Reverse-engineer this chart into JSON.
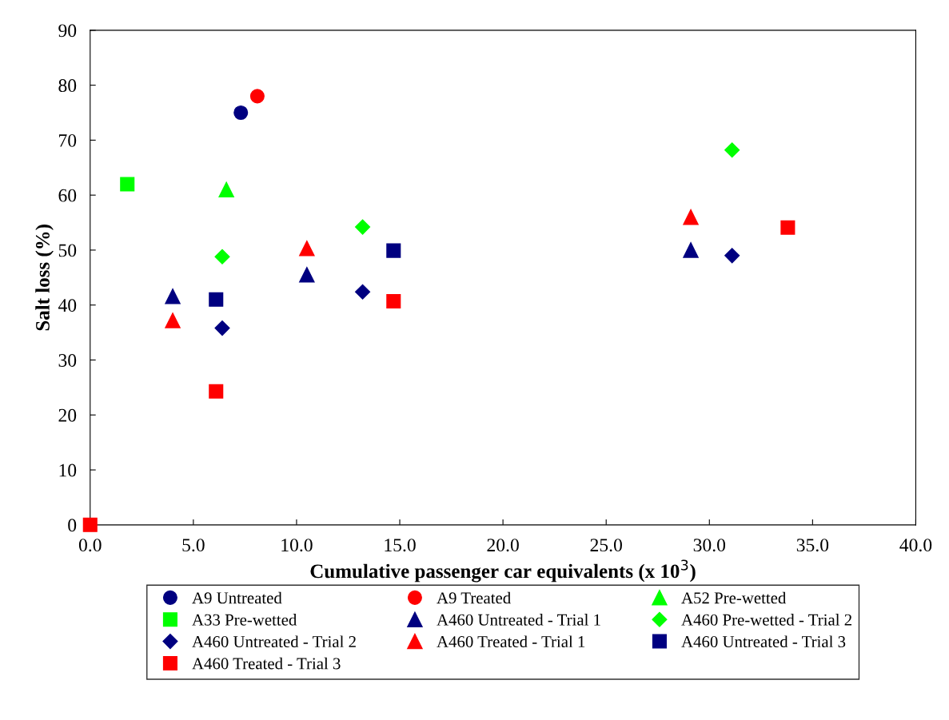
{
  "chart_data": {
    "type": "scatter",
    "xlabel": "Cumulative passenger car equivalents (x 10$^{3}$)",
    "ylabel": "Salt loss (%)",
    "xlim": [
      0,
      40
    ],
    "xticks": [
      {
        "value": 0,
        "label": "0.0"
      },
      {
        "value": 5,
        "label": "5.0"
      },
      {
        "value": 10,
        "label": "10.0"
      },
      {
        "value": 15,
        "label": "15.0"
      },
      {
        "value": 20,
        "label": "20.0"
      },
      {
        "value": 25,
        "label": "25.0"
      },
      {
        "value": 30,
        "label": "30.0"
      },
      {
        "value": 35,
        "label": "35.0"
      },
      {
        "value": 40,
        "label": "40.0"
      }
    ],
    "ylim": [
      0,
      90
    ],
    "yticks": [
      0,
      10,
      20,
      30,
      40,
      50,
      60,
      70,
      80,
      90
    ],
    "grid": false,
    "legend": "bottom",
    "series": [
      {
        "name": "A9 Untreated",
        "color": "#000080",
        "marker": "circle",
        "x": [
          7.3
        ],
        "values": [
          75
        ]
      },
      {
        "name": "A9 Treated",
        "color": "#ff0000",
        "marker": "circle",
        "x": [
          8.1
        ],
        "values": [
          78
        ]
      },
      {
        "name": "A52 Pre-wetted",
        "color": "#00ff00",
        "marker": "triangle",
        "x": [
          6.6
        ],
        "values": [
          61
        ]
      },
      {
        "name": "A33 Pre-wetted",
        "color": "#00ff00",
        "marker": "square",
        "x": [
          1.8
        ],
        "values": [
          62
        ]
      },
      {
        "name": "A460 Untreated - Trial 1",
        "color": "#000080",
        "marker": "triangle",
        "x": [
          4.0,
          10.5,
          29.1
        ],
        "values": [
          41.6,
          45.5,
          50.0
        ]
      },
      {
        "name": "A460 Pre-wetted - Trial 2",
        "color": "#00ff00",
        "marker": "diamond",
        "x": [
          6.4,
          13.2,
          31.1
        ],
        "values": [
          48.8,
          54.2,
          68.2
        ]
      },
      {
        "name": "A460 Untreated - Trial 2",
        "color": "#000080",
        "marker": "diamond",
        "x": [
          6.4,
          13.2,
          31.1
        ],
        "values": [
          35.8,
          42.4,
          49.0
        ]
      },
      {
        "name": "A460 Treated - Trial 1",
        "color": "#ff0000",
        "marker": "triangle",
        "x": [
          4.0,
          10.5,
          29.1
        ],
        "values": [
          37.2,
          50.3,
          56.0
        ]
      },
      {
        "name": "A460 Untreated - Trial 3",
        "color": "#000080",
        "marker": "square",
        "x": [
          6.1,
          14.7
        ],
        "values": [
          41.0,
          49.9
        ]
      },
      {
        "name": "A460 Treated - Trial 3",
        "color": "#ff0000",
        "marker": "square",
        "x": [
          0,
          6.1,
          14.7,
          33.8
        ],
        "values": [
          0,
          24.3,
          40.7,
          54.1
        ]
      }
    ]
  }
}
